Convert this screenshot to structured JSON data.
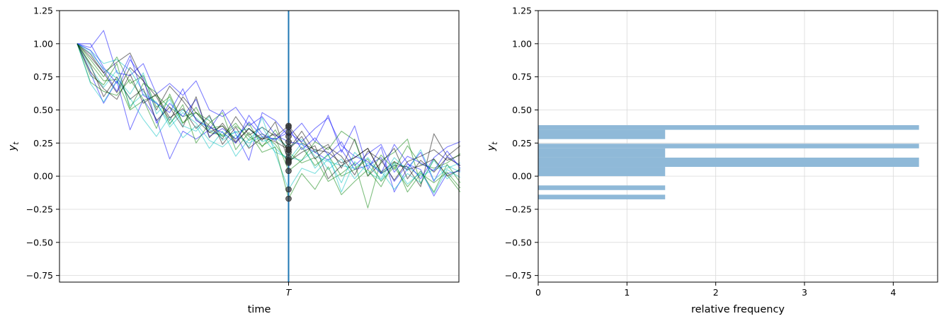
{
  "chart_data": [
    {
      "type": "line",
      "title": "",
      "xlabel": "time",
      "ylabel": "y_t",
      "ylim": [
        -0.8,
        1.25
      ],
      "yticks": [
        "−0.75",
        "−0.50",
        "−0.25",
        "0.00",
        "0.25",
        "0.50",
        "0.75",
        "1.00",
        "1.25"
      ],
      "yticks_values": [
        -0.75,
        -0.5,
        -0.25,
        0.0,
        0.25,
        0.5,
        0.75,
        1.0,
        1.25
      ],
      "xticks": [
        "T"
      ],
      "grid": "horizontal",
      "n_steps": 30,
      "T_index": 16,
      "marker_color": "#333333",
      "vline_color": "#1f77b4",
      "series_colors": [
        "#0000ff",
        "#00bfbf",
        "#008000",
        "#000000"
      ],
      "series": [
        {
          "values": [
            1.0,
            0.97,
            1.1,
            0.78,
            0.76,
            0.85,
            0.62,
            0.7,
            0.61,
            0.72,
            0.5,
            0.45,
            0.52,
            0.38,
            0.45,
            0.31,
            0.26,
            0.24,
            0.18,
            0.12,
            0.2,
            0.05,
            0.08,
            0.14,
            -0.04,
            0.09,
            0.05,
            -0.15,
            0.02,
            0.04
          ]
        },
        {
          "values": [
            1.0,
            0.95,
            0.85,
            0.88,
            0.8,
            0.64,
            0.55,
            0.4,
            0.5,
            0.44,
            0.35,
            0.3,
            0.33,
            0.36,
            0.26,
            0.29,
            0.22,
            0.28,
            0.15,
            0.11,
            0.08,
            0.06,
            0.14,
            0.02,
            0.1,
            0.07,
            0.0,
            0.05,
            0.08,
            0.03
          ]
        },
        {
          "values": [
            1.0,
            0.85,
            0.72,
            0.73,
            0.5,
            0.57,
            0.61,
            0.52,
            0.45,
            0.48,
            0.36,
            0.38,
            0.28,
            0.4,
            0.22,
            0.35,
            0.18,
            0.1,
            0.14,
            -0.04,
            0.02,
            0.1,
            -0.24,
            0.12,
            0.18,
            0.28,
            -0.06,
            0.13,
            0.01,
            -0.12
          ]
        },
        {
          "values": [
            1.0,
            0.9,
            0.78,
            0.86,
            0.93,
            0.72,
            0.6,
            0.42,
            0.6,
            0.48,
            0.38,
            0.28,
            0.45,
            0.31,
            0.37,
            0.3,
            0.38,
            0.25,
            0.2,
            0.18,
            0.1,
            0.14,
            0.21,
            0.02,
            0.08,
            0.07,
            -0.08,
            0.32,
            0.15,
            0.23
          ]
        },
        {
          "values": [
            1.0,
            0.78,
            0.55,
            0.72,
            0.35,
            0.58,
            0.43,
            0.13,
            0.34,
            0.28,
            0.35,
            0.5,
            0.32,
            0.12,
            0.48,
            0.42,
            0.3,
            0.4,
            0.26,
            0.46,
            0.18,
            0.38,
            0.05,
            0.22,
            -0.12,
            0.06,
            0.18,
            -0.04,
            0.15,
            0.08
          ]
        },
        {
          "values": [
            1.0,
            0.82,
            0.67,
            0.8,
            0.53,
            0.62,
            0.56,
            0.37,
            0.48,
            0.4,
            0.27,
            0.22,
            0.31,
            0.25,
            0.3,
            0.18,
            0.14,
            0.12,
            0.2,
            0.05,
            0.13,
            -0.02,
            0.1,
            0.04,
            -0.1,
            0.02,
            -0.05,
            0.12,
            -0.02,
            0.06
          ]
        },
        {
          "values": [
            1.0,
            0.71,
            0.64,
            0.61,
            0.73,
            0.58,
            0.36,
            0.62,
            0.4,
            0.52,
            0.33,
            0.31,
            0.4,
            0.27,
            0.32,
            0.24,
            0.1,
            0.22,
            0.08,
            0.16,
            0.0,
            0.05,
            0.13,
            -0.04,
            0.07,
            -0.08,
            0.04,
            -0.12,
            0.09,
            -0.05
          ]
        },
        {
          "values": [
            1.0,
            0.92,
            0.78,
            0.63,
            0.82,
            0.72,
            0.5,
            0.68,
            0.57,
            0.43,
            0.33,
            0.38,
            0.25,
            0.36,
            0.28,
            0.32,
            0.2,
            0.34,
            0.18,
            0.24,
            0.06,
            0.28,
            0.0,
            0.1,
            0.21,
            -0.02,
            0.12,
            0.03,
            0.14,
            0.08
          ]
        },
        {
          "values": [
            1.0,
            0.95,
            0.8,
            0.64,
            0.88,
            0.74,
            0.4,
            0.55,
            0.45,
            0.58,
            0.3,
            0.36,
            0.28,
            0.41,
            0.3,
            0.28,
            0.33,
            0.26,
            0.36,
            0.44,
            0.23,
            0.15,
            0.11,
            0.02,
            0.24,
            0.1,
            -0.02,
            0.14,
            0.22,
            0.26
          ]
        },
        {
          "values": [
            1.0,
            0.7,
            0.56,
            0.72,
            0.59,
            0.43,
            0.3,
            0.45,
            0.29,
            0.38,
            0.21,
            0.34,
            0.15,
            0.28,
            0.37,
            0.21,
            0.12,
            0.25,
            0.06,
            0.17,
            -0.12,
            0.11,
            0.03,
            -0.03,
            0.09,
            -0.06,
            0.03,
            -0.13,
            0.05,
            -0.01
          ]
        },
        {
          "values": [
            1.0,
            0.88,
            0.75,
            0.9,
            0.7,
            0.76,
            0.52,
            0.6,
            0.4,
            0.48,
            0.42,
            0.3,
            0.38,
            0.3,
            0.23,
            0.29,
            0.04,
            0.12,
            0.26,
            0.2,
            0.34,
            0.27,
            0.0,
            0.16,
            0.05,
            0.23,
            0.09,
            0.06,
            0.1,
            0.17
          ]
        },
        {
          "values": [
            1.0,
            0.84,
            0.6,
            0.75,
            0.58,
            0.66,
            0.42,
            0.52,
            0.37,
            0.6,
            0.29,
            0.4,
            0.26,
            0.36,
            0.27,
            0.41,
            0.11,
            0.18,
            0.23,
            -0.02,
            0.08,
            0.14,
            0.21,
            0.03,
            0.11,
            0.05,
            0.08,
            0.13,
            0.0,
            0.05
          ]
        },
        {
          "values": [
            1.0,
            1.0,
            0.82,
            0.7,
            0.91,
            0.61,
            0.55,
            0.48,
            0.66,
            0.42,
            0.37,
            0.33,
            0.25,
            0.46,
            0.32,
            0.27,
            0.37,
            0.2,
            0.29,
            0.16,
            0.26,
            0.08,
            0.17,
            0.24,
            0.03,
            0.15,
            0.1,
            0.04,
            0.19,
            0.06
          ]
        },
        {
          "values": [
            1.0,
            0.93,
            0.81,
            0.74,
            0.62,
            0.78,
            0.47,
            0.58,
            0.38,
            0.34,
            0.45,
            0.27,
            0.34,
            0.22,
            0.44,
            0.17,
            -0.1,
            0.06,
            0.02,
            0.13,
            -0.05,
            0.18,
            0.08,
            -0.02,
            0.14,
            0.04,
            0.2,
            -0.03,
            0.06,
            0.1
          ]
        },
        {
          "values": [
            1.0,
            0.76,
            0.69,
            0.85,
            0.51,
            0.7,
            0.63,
            0.39,
            0.54,
            0.25,
            0.4,
            0.48,
            0.2,
            0.33,
            0.18,
            0.22,
            -0.17,
            0.02,
            -0.1,
            0.07,
            -0.14,
            -0.04,
            0.05,
            -0.08,
            0.11,
            -0.12,
            0.02,
            -0.05,
            0.03,
            -0.09
          ]
        },
        {
          "values": [
            1.0,
            0.79,
            0.66,
            0.58,
            0.77,
            0.55,
            0.62,
            0.44,
            0.51,
            0.36,
            0.46,
            0.24,
            0.37,
            0.21,
            0.29,
            0.26,
            0.2,
            0.3,
            0.13,
            0.22,
            0.15,
            0.01,
            0.19,
            0.12,
            -0.03,
            0.11,
            0.15,
            0.2,
            0.12,
            0.16
          ]
        }
      ]
    },
    {
      "type": "bar",
      "orientation": "horizontal",
      "title": "",
      "xlabel": "relative frequency",
      "ylabel": "y_t",
      "xlim": [
        0,
        4.5
      ],
      "ylim": [
        -0.8,
        1.25
      ],
      "xticks": [
        "0",
        "1",
        "2",
        "3",
        "4"
      ],
      "xticks_values": [
        0,
        1,
        2,
        3,
        4
      ],
      "yticks": [
        "−0.75",
        "−0.50",
        "−0.25",
        "0.00",
        "0.25",
        "0.50",
        "0.75",
        "1.00",
        "1.25"
      ],
      "yticks_values": [
        -0.75,
        -0.5,
        -0.25,
        0.0,
        0.25,
        0.5,
        0.75,
        1.0,
        1.25
      ],
      "grid": "both",
      "bar_color": "#8fb9d8",
      "bins": [
        {
          "y0": -0.175,
          "y1": -0.14,
          "value": 1.43
        },
        {
          "y0": -0.105,
          "y1": -0.07,
          "value": 1.43
        },
        {
          "y0": 0.0,
          "y1": 0.07,
          "value": 1.43
        },
        {
          "y0": 0.07,
          "y1": 0.14,
          "value": 4.29
        },
        {
          "y0": 0.14,
          "y1": 0.21,
          "value": 1.43
        },
        {
          "y0": 0.21,
          "y1": 0.245,
          "value": 4.29
        },
        {
          "y0": 0.28,
          "y1": 0.35,
          "value": 1.43
        },
        {
          "y0": 0.35,
          "y1": 0.385,
          "value": 4.29
        }
      ]
    }
  ]
}
